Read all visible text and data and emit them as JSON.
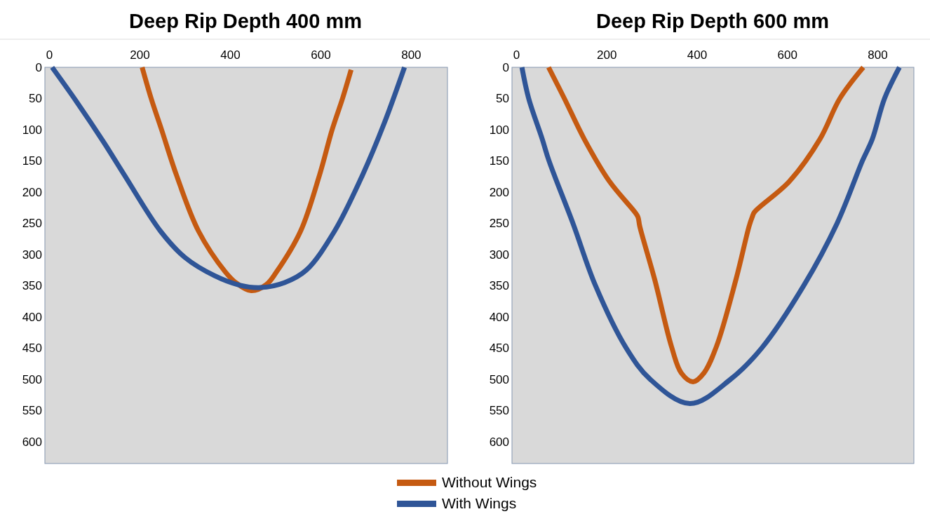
{
  "chart_data": [
    {
      "type": "line",
      "title": "Deep Rip Depth 400 mm",
      "xlim": [
        -10,
        880
      ],
      "ylim": [
        635,
        0
      ],
      "xticks": [
        0,
        200,
        400,
        600,
        800
      ],
      "yticks": [
        0,
        50,
        100,
        150,
        200,
        250,
        300,
        350,
        400,
        450,
        500,
        550,
        600
      ],
      "grid": false,
      "legend": "bottom",
      "line_style": "solid",
      "marker": "none",
      "series": [
        {
          "name": "Without Wings",
          "color": "#c55a11",
          "x": [
            205,
            225,
            248,
            281,
            330,
            389,
            412,
            446,
            480,
            502,
            555,
            597,
            625,
            648,
            667
          ],
          "values": [
            0,
            50,
            100,
            173,
            263,
            328,
            345,
            358,
            348,
            328,
            263,
            173,
            100,
            50,
            4
          ]
        },
        {
          "name": "With Wings",
          "color": "#2f5597",
          "x": [
            6,
            60,
            120,
            166,
            246,
            300,
            365,
            420,
            467,
            520,
            568,
            630,
            692,
            740,
            785
          ],
          "values": [
            0,
            55,
            120,
            173,
            263,
            305,
            334,
            349,
            353,
            345,
            325,
            263,
            173,
            90,
            0
          ]
        }
      ]
    },
    {
      "type": "line",
      "title": "Deep Rip Depth 600 mm",
      "xlim": [
        -10,
        880
      ],
      "ylim": [
        635,
        0
      ],
      "xticks": [
        0,
        200,
        400,
        600,
        800
      ],
      "yticks": [
        0,
        50,
        100,
        150,
        200,
        250,
        300,
        350,
        400,
        450,
        500,
        550,
        600
      ],
      "grid": false,
      "line_style": "solid",
      "marker": "none",
      "series": [
        {
          "color": "#c55a11",
          "x": [
            71,
            106,
            150,
            206,
            262,
            269,
            273,
            306,
            343,
            365,
            391,
            415,
            443,
            486,
            515,
            522,
            527,
            604,
            672,
            716,
            768
          ],
          "values": [
            0,
            50,
            115,
            183,
            232,
            240,
            255,
            340,
            447,
            490,
            504,
            490,
            447,
            340,
            255,
            240,
            232,
            183,
            115,
            50,
            0
          ]
        },
        {
          "color": "#2f5597",
          "x": [
            12,
            27,
            57,
            72,
            125,
            175,
            243,
            296,
            384,
            474,
            543,
            636,
            710,
            766,
            788,
            815,
            848
          ],
          "values": [
            0,
            50,
            115,
            150,
            250,
            350,
            450,
            500,
            539,
            500,
            450,
            350,
            250,
            150,
            115,
            50,
            0
          ]
        }
      ]
    }
  ]
}
